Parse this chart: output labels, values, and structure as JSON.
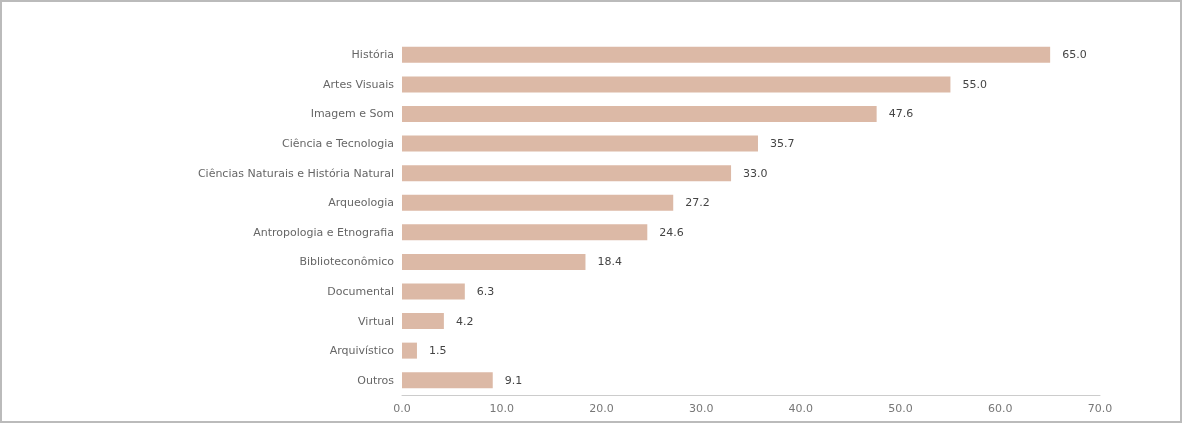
{
  "chart_data": {
    "type": "bar",
    "orientation": "horizontal",
    "categories": [
      "História",
      "Artes Visuais",
      "Imagem e Som",
      "Ciência e Tecnologia",
      "Ciências Naturais e História Natural",
      "Arqueologia",
      "Antropologia e Etnografia",
      "Biblioteconômico",
      "Documental",
      "Virtual",
      "Arquivístico",
      "Outros"
    ],
    "values": [
      65.0,
      55.0,
      47.6,
      35.7,
      33.0,
      27.2,
      24.6,
      18.4,
      6.3,
      4.2,
      1.5,
      9.1
    ],
    "color": "#dcb9a6",
    "xlim": [
      0,
      70
    ],
    "xticks": [
      {
        "value": 0,
        "label": "0.0"
      },
      {
        "value": 10,
        "label": "10.0"
      },
      {
        "value": 20,
        "label": "20.0"
      },
      {
        "value": 30,
        "label": "30.0"
      },
      {
        "value": 40,
        "label": "40.0"
      },
      {
        "value": 50,
        "label": "50.0"
      },
      {
        "value": 60,
        "label": "60.0"
      },
      {
        "value": 70,
        "label": "70.0"
      }
    ],
    "value_labels": [
      "65.0",
      "55.0",
      "47.6",
      "35.7",
      "33.0",
      "27.2",
      "24.6",
      "18.4",
      "6.3",
      "4.2",
      "1.5",
      "9.1"
    ],
    "grid": false
  }
}
